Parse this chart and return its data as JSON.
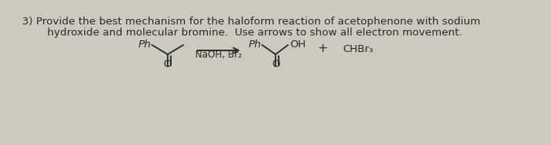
{
  "background_color": "#ccc9bf",
  "title_line1": "3) Provide the best mechanism for the haloform reaction of acetophenone with sodium",
  "title_line2": "hydroxide and molecular bromine.  Use arrows to show all electron movement.",
  "title_fontsize": 9.5,
  "title_color": "#2a2a2a",
  "reagent_label": "NaOH, Br₂",
  "plus_sign": "+",
  "product2_label": "CHBr₃",
  "reactant_Ph": "Ph",
  "product_Ph": "Ph",
  "product_OH": "OH",
  "arrow_color": "#2a2a2a",
  "text_color": "#2a2a2a",
  "O_label": "O",
  "lw": 1.3
}
